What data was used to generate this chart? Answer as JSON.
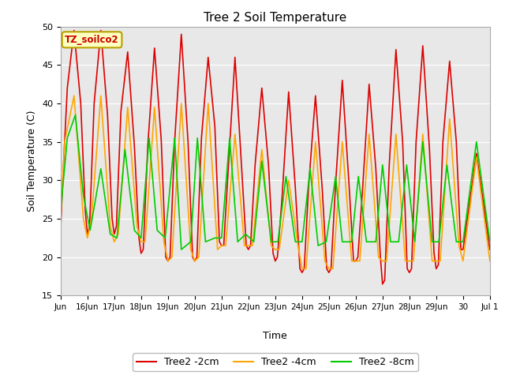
{
  "title": "Tree 2 Soil Temperature",
  "xlabel": "Time",
  "ylabel": "Soil Temperature (C)",
  "ylim": [
    15,
    50
  ],
  "xlim": [
    0,
    16
  ],
  "xtick_labels": [
    "Jun",
    "16Jun",
    "17Jun",
    "18Jun",
    "19Jun",
    "20Jun",
    "21Jun",
    "22Jun",
    "23Jun",
    "24Jun",
    "25Jun",
    "26Jun",
    "27Jun",
    "28Jun",
    "29Jun",
    "30",
    "Jul 1"
  ],
  "ytick_values": [
    15,
    20,
    25,
    30,
    35,
    40,
    45,
    50
  ],
  "bg_color": "#e8e8e8",
  "legend_box_label": "TZ_soilco2",
  "legend_box_color": "#ffffc0",
  "legend_box_edge": "#b8a000",
  "series": [
    {
      "label": "Tree2 -2cm",
      "color": "#dd0000",
      "lw": 1.2,
      "data_x": [
        0.0,
        0.08,
        0.25,
        0.5,
        0.75,
        0.92,
        1.0,
        1.08,
        1.25,
        1.5,
        1.75,
        1.92,
        2.0,
        2.08,
        2.25,
        2.5,
        2.75,
        2.92,
        3.0,
        3.08,
        3.25,
        3.5,
        3.75,
        3.92,
        4.0,
        4.08,
        4.25,
        4.5,
        4.75,
        4.92,
        5.0,
        5.08,
        5.25,
        5.5,
        5.75,
        5.92,
        6.0,
        6.08,
        6.25,
        6.5,
        6.75,
        6.92,
        7.0,
        7.08,
        7.25,
        7.5,
        7.75,
        7.92,
        8.0,
        8.08,
        8.25,
        8.5,
        8.75,
        8.92,
        9.0,
        9.08,
        9.25,
        9.5,
        9.75,
        9.92,
        10.0,
        10.08,
        10.25,
        10.5,
        10.75,
        10.92,
        11.0,
        11.08,
        11.25,
        11.5,
        11.75,
        11.92,
        12.0,
        12.08,
        12.25,
        12.5,
        12.75,
        12.92,
        13.0,
        13.08,
        13.25,
        13.5,
        13.75,
        13.92,
        14.0,
        14.08,
        14.25,
        14.5,
        14.75,
        14.92,
        15.0,
        15.5,
        16.0
      ],
      "data_y": [
        23.5,
        30.0,
        42.0,
        49.5,
        40.0,
        26.0,
        23.0,
        24.0,
        40.0,
        49.5,
        38.5,
        25.0,
        23.0,
        24.0,
        39.0,
        46.7,
        34.5,
        22.5,
        20.5,
        21.0,
        34.5,
        47.2,
        35.3,
        20.0,
        19.5,
        20.0,
        35.0,
        49.0,
        35.0,
        20.0,
        19.5,
        20.0,
        35.5,
        46.0,
        37.0,
        22.0,
        21.5,
        21.5,
        31.5,
        46.0,
        31.5,
        21.5,
        21.0,
        21.5,
        32.0,
        42.0,
        32.0,
        20.5,
        19.5,
        20.0,
        27.5,
        41.5,
        29.0,
        18.5,
        18.0,
        18.5,
        29.5,
        41.0,
        29.0,
        18.5,
        18.0,
        18.5,
        29.5,
        43.0,
        29.5,
        19.5,
        19.5,
        20.0,
        28.5,
        42.5,
        31.5,
        20.0,
        16.5,
        17.0,
        32.0,
        47.0,
        35.0,
        18.5,
        18.0,
        18.5,
        35.0,
        47.5,
        34.0,
        20.5,
        18.5,
        19.0,
        35.0,
        45.5,
        35.0,
        21.0,
        21.0,
        33.5,
        21.0
      ]
    },
    {
      "label": "Tree2 -4cm",
      "color": "#ffa500",
      "lw": 1.2,
      "data_x": [
        0.0,
        0.15,
        0.5,
        0.85,
        1.0,
        1.15,
        1.5,
        1.85,
        2.0,
        2.15,
        2.5,
        2.85,
        3.0,
        3.15,
        3.5,
        3.85,
        4.0,
        4.15,
        4.5,
        4.85,
        5.0,
        5.15,
        5.5,
        5.85,
        6.0,
        6.15,
        6.5,
        6.85,
        7.0,
        7.15,
        7.5,
        7.85,
        8.0,
        8.15,
        8.5,
        8.85,
        9.0,
        9.15,
        9.5,
        9.85,
        10.0,
        10.15,
        10.5,
        10.85,
        11.0,
        11.15,
        11.5,
        11.85,
        12.0,
        12.15,
        12.5,
        12.85,
        13.0,
        13.15,
        13.5,
        13.85,
        14.0,
        14.15,
        14.5,
        14.85,
        15.0,
        15.5,
        16.0
      ],
      "data_y": [
        25.0,
        35.0,
        41.0,
        25.0,
        22.5,
        25.0,
        41.0,
        24.0,
        22.0,
        23.0,
        39.5,
        24.0,
        22.0,
        22.0,
        39.5,
        22.0,
        19.5,
        20.0,
        40.0,
        21.0,
        19.5,
        20.0,
        40.0,
        21.0,
        21.5,
        21.5,
        36.0,
        21.5,
        21.5,
        21.5,
        34.0,
        21.5,
        21.0,
        21.0,
        30.0,
        21.5,
        18.5,
        18.5,
        35.0,
        19.5,
        18.5,
        18.5,
        35.0,
        19.5,
        19.5,
        19.5,
        36.0,
        20.0,
        19.5,
        19.5,
        36.0,
        19.5,
        19.5,
        19.5,
        36.0,
        19.5,
        19.5,
        19.5,
        38.0,
        21.5,
        19.5,
        33.0,
        19.5
      ]
    },
    {
      "label": "Tree2 -8cm",
      "color": "#00cc00",
      "lw": 1.2,
      "data_x": [
        0.0,
        0.25,
        0.55,
        0.85,
        1.1,
        1.5,
        1.85,
        2.1,
        2.4,
        2.75,
        3.0,
        3.3,
        3.6,
        3.9,
        4.25,
        4.5,
        4.85,
        5.1,
        5.4,
        5.75,
        6.0,
        6.3,
        6.6,
        6.9,
        7.2,
        7.5,
        7.85,
        8.1,
        8.4,
        8.75,
        9.0,
        9.3,
        9.6,
        9.9,
        10.25,
        10.5,
        10.85,
        11.1,
        11.4,
        11.75,
        12.0,
        12.3,
        12.6,
        12.9,
        13.2,
        13.5,
        13.85,
        14.1,
        14.4,
        14.75,
        15.0,
        15.5,
        16.0
      ],
      "data_y": [
        26.0,
        35.5,
        38.5,
        28.0,
        23.5,
        31.5,
        23.0,
        22.5,
        34.0,
        23.5,
        22.5,
        35.5,
        23.5,
        22.5,
        35.5,
        21.0,
        22.0,
        35.5,
        22.0,
        22.5,
        22.5,
        35.5,
        22.0,
        23.0,
        22.0,
        32.5,
        22.0,
        22.0,
        30.5,
        22.0,
        22.0,
        31.5,
        21.5,
        22.0,
        30.5,
        22.0,
        22.0,
        30.5,
        22.0,
        22.0,
        32.0,
        22.0,
        22.0,
        32.0,
        22.0,
        35.0,
        22.0,
        22.0,
        32.0,
        22.0,
        22.0,
        35.0,
        22.0
      ]
    }
  ]
}
